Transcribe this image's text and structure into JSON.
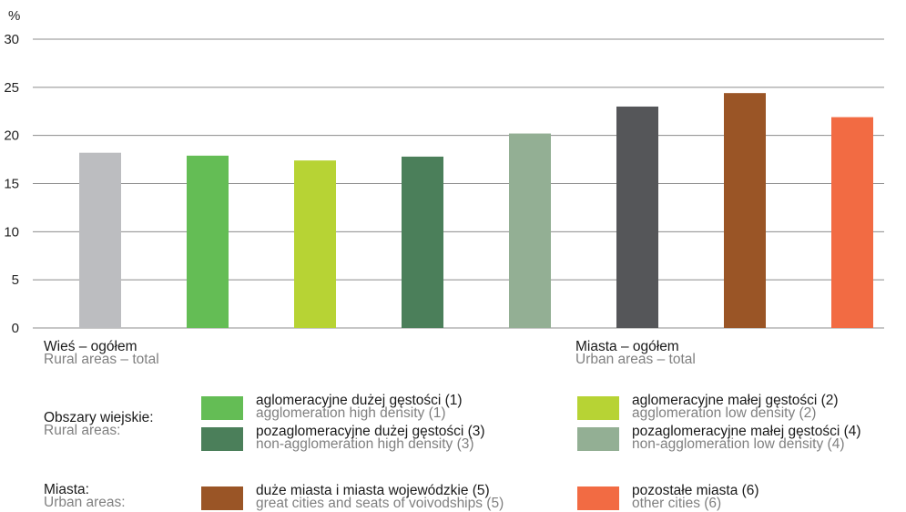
{
  "chart_data": {
    "type": "bar",
    "ylabel": "%",
    "ylim": [
      0,
      30
    ],
    "yticks": [
      0,
      5,
      10,
      15,
      20,
      25,
      30
    ],
    "grid": true,
    "categories": [
      "Wieś – ogółem",
      "aglomeracyjne dużej gęstości (1)",
      "aglomeracyjne małej gęstości (2)",
      "pozaglomeracyjne dużej gęstości (3)",
      "pozaglomeracyjne małej gęstości (4)",
      "Miasta – ogółem",
      "duże miasta i miasta wojewódzkie (5)",
      "pozostałe miasta (6)"
    ],
    "values": [
      18.2,
      17.9,
      17.4,
      17.8,
      20.2,
      23.0,
      24.4,
      21.9
    ],
    "colors": [
      "#bcbdc0",
      "#64bd55",
      "#b7d334",
      "#4b7f5a",
      "#93af94",
      "#555659",
      "#9a5526",
      "#f26b43"
    ],
    "x_captions": [
      {
        "pl": "Wieś – ogółem",
        "en": "Rural areas – total"
      },
      {
        "pl": "Miasta – ogółem",
        "en": "Urban areas – total"
      }
    ]
  },
  "legend": {
    "groups": [
      {
        "pl": "Obszary wiejskie:",
        "en": "Rural areas:",
        "items": [
          {
            "pl": "aglomeracyjne dużej gęstości (1)",
            "en": "agglomeration high density (1)",
            "color": "#64bd55"
          },
          {
            "pl": "aglomeracyjne małej gęstości (2)",
            "en": "agglomeration low density (2)",
            "color": "#b7d334"
          },
          {
            "pl": "pozaglomeracyjne dużej gęstości (3)",
            "en": "non-agglomeration high density (3)",
            "color": "#4b7f5a"
          },
          {
            "pl": "pozaglomeracyjne małej gęstości (4)",
            "en": "non-agglomeration low density (4)",
            "color": "#93af94"
          }
        ]
      },
      {
        "pl": "Miasta:",
        "en": "Urban areas:",
        "items": [
          {
            "pl": "duże miasta i miasta wojewódzkie (5)",
            "en": "great cities and seats of voivodships (5)",
            "color": "#9a5526"
          },
          {
            "pl": "pozostałe miasta (6)",
            "en": "other cities (6)",
            "color": "#f26b43"
          }
        ]
      }
    ]
  }
}
